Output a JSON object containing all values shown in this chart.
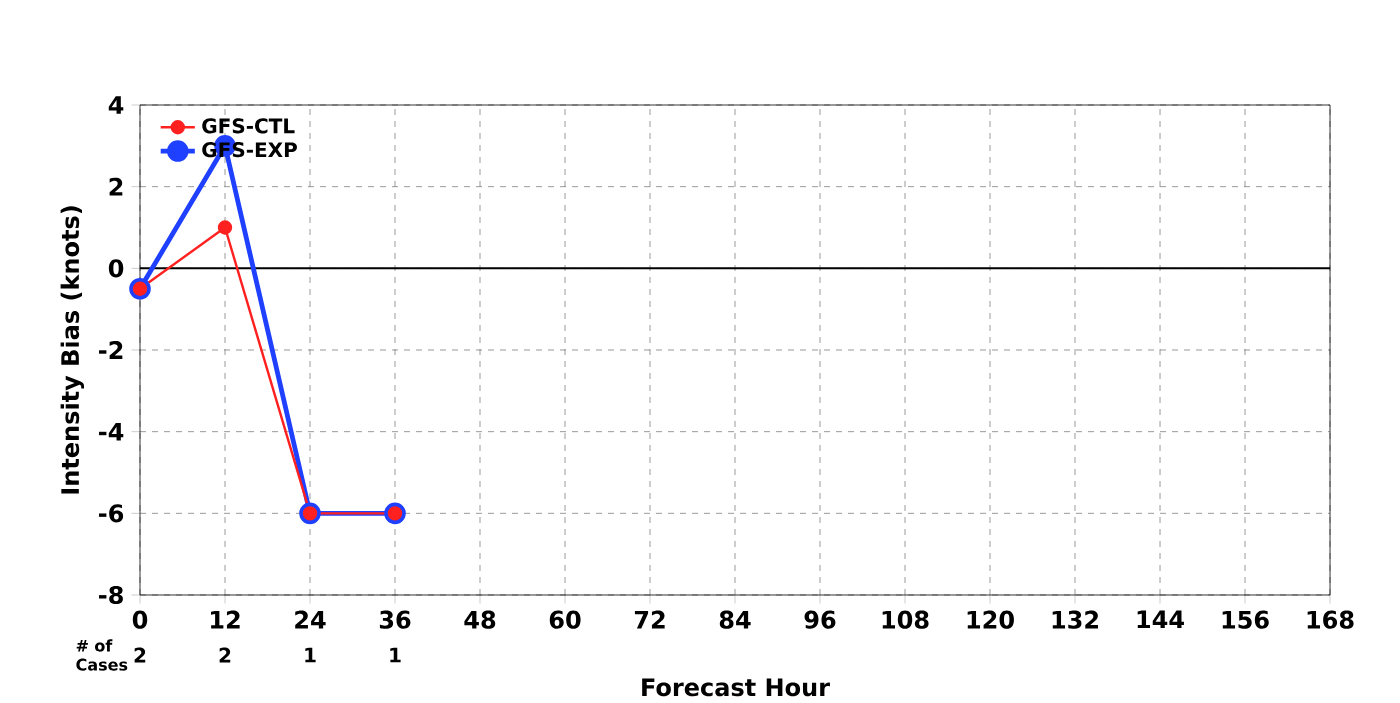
{
  "chart_data": {
    "type": "line",
    "xlabel": "Forecast Hour",
    "ylabel": "Intensity Bias (knots)",
    "x": [
      0,
      12,
      24,
      36
    ],
    "series": [
      {
        "name": "GFS-CTL",
        "color": "#ff2020",
        "values": [
          -0.5,
          1,
          -6,
          -6
        ]
      },
      {
        "name": "GFS-EXP",
        "color": "#2040ff",
        "values": [
          -0.5,
          3,
          -6,
          -6
        ]
      }
    ],
    "xlim": [
      0,
      168
    ],
    "xticks": [
      0,
      12,
      24,
      36,
      48,
      60,
      72,
      84,
      96,
      108,
      120,
      132,
      144,
      156,
      168
    ],
    "ylim": [
      -8,
      4
    ],
    "yticks": [
      -8,
      -6,
      -4,
      -2,
      0,
      2,
      4
    ],
    "ref_lines": [
      {
        "axis": "y",
        "value": 0,
        "color": "#000000"
      }
    ],
    "annotations": [
      "# of Cases",
      "2",
      "2",
      "1",
      "1"
    ],
    "grid": true,
    "legend": "top left",
    "marker": "circle",
    "line_style": "solid"
  }
}
